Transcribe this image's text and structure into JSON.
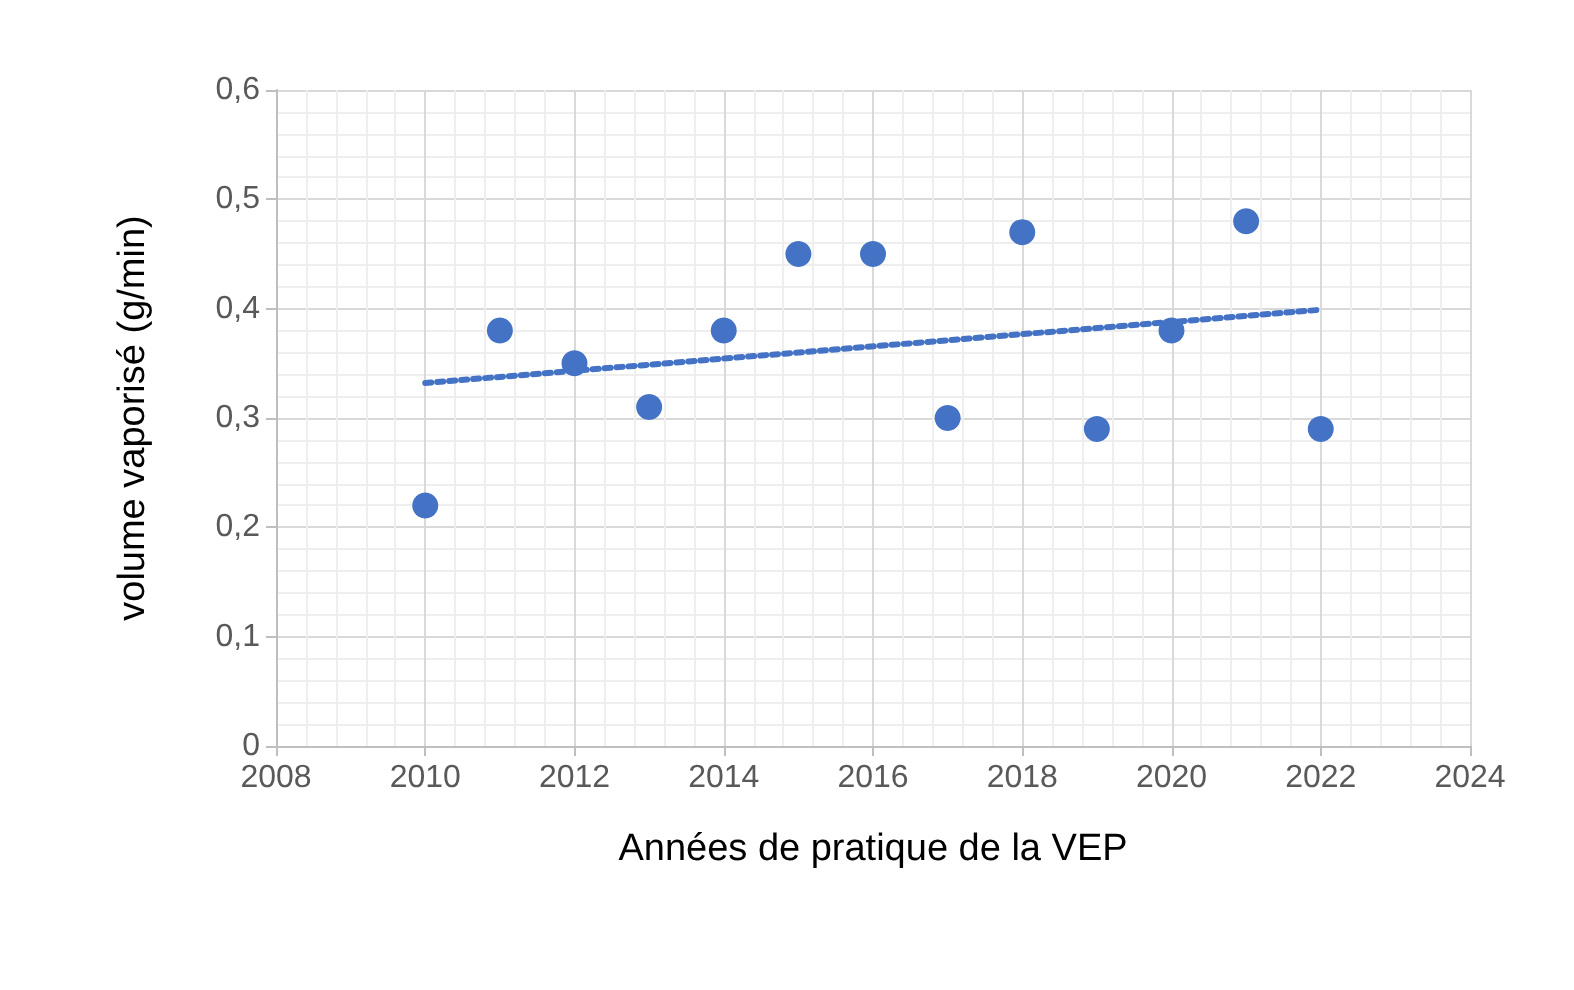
{
  "chart_data": {
    "type": "scatter",
    "xlabel": "Années de pratique de la VEP",
    "ylabel": "volume vaporisé (g/min)",
    "x": [
      2010,
      2011,
      2012,
      2013,
      2014,
      2015,
      2016,
      2017,
      2018,
      2019,
      2020,
      2021,
      2022
    ],
    "series": [
      {
        "color": "#4472c4",
        "marker": "circle",
        "values": [
          0.22,
          0.38,
          0.35,
          0.31,
          0.38,
          0.45,
          0.45,
          0.3,
          0.47,
          0.29,
          0.38,
          0.48,
          0.29
        ]
      },
      {
        "type": "line",
        "color": "#4472c4",
        "marker": "none",
        "line_style": "dotted",
        "x": [
          2010,
          2022
        ],
        "values": [
          0.332,
          0.399
        ]
      }
    ],
    "xlim": [
      2008,
      2024
    ],
    "xticks": [
      2008,
      2010,
      2012,
      2014,
      2016,
      2018,
      2020,
      2022,
      2024
    ],
    "ylim": [
      0,
      0.6
    ],
    "yticks": [
      0,
      {
        "value": 0.1,
        "label": "0,1"
      },
      {
        "value": 0.2,
        "label": "0,2"
      },
      {
        "value": 0.3,
        "label": "0,3"
      },
      {
        "value": 0.4,
        "label": "0,4"
      },
      {
        "value": 0.5,
        "label": "0,5"
      },
      {
        "value": 0.6,
        "label": "0,6"
      }
    ],
    "grid": true
  }
}
